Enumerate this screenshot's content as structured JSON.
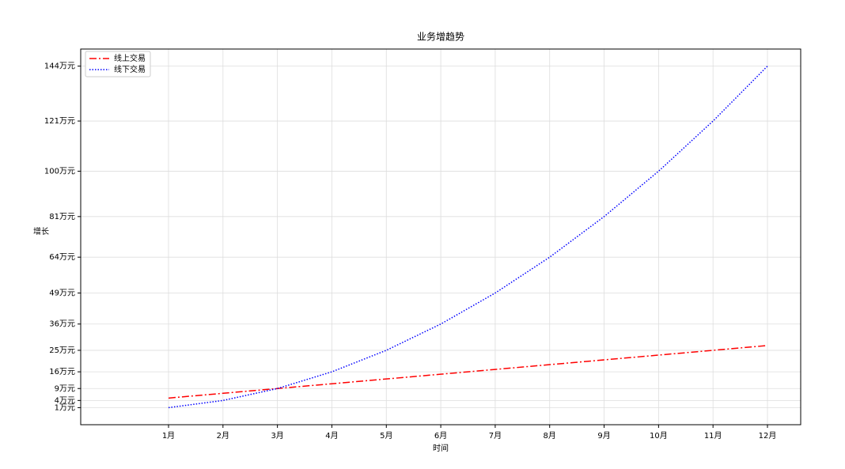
{
  "chart_data": {
    "type": "line",
    "title": "业务增趋势",
    "xlabel": "时间",
    "ylabel": "增长",
    "categories": [
      "1月",
      "2月",
      "3月",
      "4月",
      "5月",
      "6月",
      "7月",
      "8月",
      "9月",
      "10月",
      "11月",
      "12月"
    ],
    "series": [
      {
        "name": "线上交易",
        "color": "red",
        "linestyle": "dashdot",
        "values": [
          5,
          7,
          9,
          11,
          13,
          15,
          17,
          19,
          21,
          23,
          25,
          27
        ]
      },
      {
        "name": "线下交易",
        "color": "blue",
        "linestyle": "dotted",
        "values": [
          1,
          4,
          9,
          16,
          25,
          36,
          49,
          64,
          81,
          100,
          121,
          144
        ]
      }
    ],
    "ylim": [
      -6.15,
      151.15
    ],
    "yticks": [
      {
        "value": 1,
        "label": "1万元"
      },
      {
        "value": 4,
        "label": "4万元"
      },
      {
        "value": 9,
        "label": "9万元"
      },
      {
        "value": 16,
        "label": "16万元"
      },
      {
        "value": 25,
        "label": "25万元"
      },
      {
        "value": 36,
        "label": "36万元"
      },
      {
        "value": 49,
        "label": "49万元"
      },
      {
        "value": 64,
        "label": "64万元"
      },
      {
        "value": 81,
        "label": "81万元"
      },
      {
        "value": 100,
        "label": "100万元"
      },
      {
        "value": 121,
        "label": "121万元"
      },
      {
        "value": 144,
        "label": "144万元"
      }
    ],
    "grid": true,
    "legend": "upper left"
  }
}
